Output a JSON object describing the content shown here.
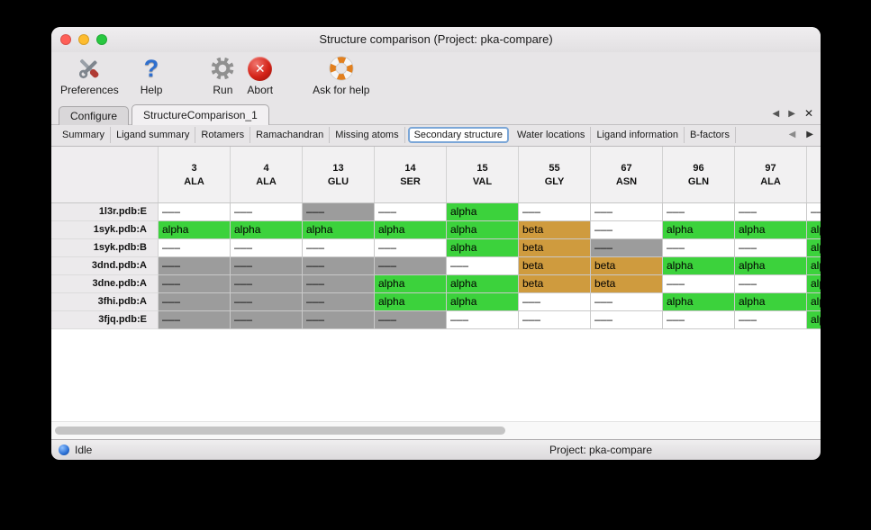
{
  "window": {
    "title": "Structure comparison (Project: pka-compare)"
  },
  "toolbar": {
    "items": [
      {
        "name": "preferences",
        "label": "Preferences",
        "icon": "tools-icon"
      },
      {
        "name": "help",
        "label": "Help",
        "icon": "question-icon"
      },
      {
        "name": "run",
        "label": "Run",
        "icon": "gear-icon"
      },
      {
        "name": "abort",
        "label": "Abort",
        "icon": "abort-icon"
      },
      {
        "name": "ask-for-help",
        "label": "Ask for help",
        "icon": "lifebuoy-icon"
      }
    ]
  },
  "main_tabs": [
    {
      "label": "Configure",
      "active": false
    },
    {
      "label": "StructureComparison_1",
      "active": true
    }
  ],
  "sub_tabs": [
    {
      "label": "Summary",
      "active": false
    },
    {
      "label": "Ligand summary",
      "active": false
    },
    {
      "label": "Rotamers",
      "active": false
    },
    {
      "label": "Ramachandran",
      "active": false
    },
    {
      "label": "Missing atoms",
      "active": false
    },
    {
      "label": "Secondary structure",
      "active": true
    },
    {
      "label": "Water locations",
      "active": false
    },
    {
      "label": "Ligand information",
      "active": false
    },
    {
      "label": "B-factors",
      "active": false
    }
  ],
  "tab_nav": {
    "prev": "◀",
    "next": "▶",
    "close": "✕"
  },
  "table": {
    "columns": [
      {
        "num": "3",
        "res": "ALA"
      },
      {
        "num": "4",
        "res": "ALA"
      },
      {
        "num": "13",
        "res": "GLU"
      },
      {
        "num": "14",
        "res": "SER"
      },
      {
        "num": "15",
        "res": "VAL"
      },
      {
        "num": "55",
        "res": "GLY"
      },
      {
        "num": "67",
        "res": "ASN"
      },
      {
        "num": "96",
        "res": "GLN"
      },
      {
        "num": "97",
        "res": "ALA"
      }
    ],
    "cell_types": {
      "n": {
        "label": "–––",
        "color_key": "none"
      },
      "a": {
        "label": "alpha",
        "color_key": "alpha"
      },
      "b": {
        "label": "beta",
        "color_key": "beta"
      },
      "g": {
        "label": "–––",
        "color_key": "gap"
      }
    },
    "rows": [
      {
        "name": "1l3r.pdb:E",
        "cells": [
          "n",
          "n",
          "g",
          "n",
          "a",
          "n",
          "n",
          "n",
          "n"
        ],
        "last": "n"
      },
      {
        "name": "1syk.pdb:A",
        "cells": [
          "a",
          "a",
          "a",
          "a",
          "a",
          "b",
          "n",
          "a",
          "a"
        ],
        "last": "a"
      },
      {
        "name": "1syk.pdb:B",
        "cells": [
          "n",
          "n",
          "n",
          "n",
          "a",
          "b",
          "g",
          "n",
          "n"
        ],
        "last": "a"
      },
      {
        "name": "3dnd.pdb:A",
        "cells": [
          "g",
          "g",
          "g",
          "g",
          "n",
          "b",
          "b",
          "a",
          "a"
        ],
        "last": "a"
      },
      {
        "name": "3dne.pdb:A",
        "cells": [
          "g",
          "g",
          "g",
          "a",
          "a",
          "b",
          "b",
          "n",
          "n"
        ],
        "last": "a"
      },
      {
        "name": "3fhi.pdb:A",
        "cells": [
          "g",
          "g",
          "g",
          "a",
          "a",
          "n",
          "n",
          "a",
          "a"
        ],
        "last": "a"
      },
      {
        "name": "3fjq.pdb:E",
        "cells": [
          "g",
          "g",
          "g",
          "g",
          "n",
          "n",
          "n",
          "n",
          "n"
        ],
        "last": "a"
      }
    ]
  },
  "statusbar": {
    "status": "Idle",
    "project": "Project: pka-compare"
  },
  "colors": {
    "alpha": "#3cd23c",
    "beta": "#cf9b3e",
    "gap": "#9c9c9c",
    "none": "#ffffff",
    "traffic_red": "#ff5f57",
    "traffic_yellow": "#febc2e",
    "traffic_green": "#28c840"
  }
}
